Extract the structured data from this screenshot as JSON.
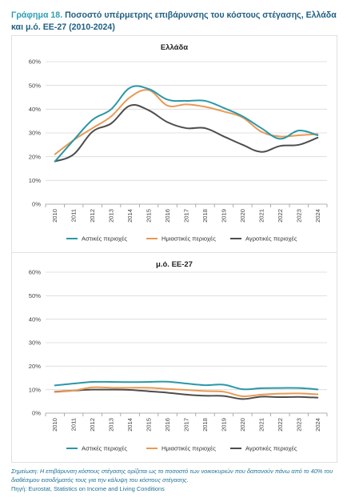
{
  "figure": {
    "title_lead": "Γράφημα 18.",
    "title_rest": " Ποσοστό υπέρμετρης επιβάρυνσης του κόστους στέγασης, Ελλάδα και μ.ό. ΕΕ-27 (2010-2024)"
  },
  "note": {
    "label": "Σημείωση:",
    "text": " Η επιβάρυνση κόστους στέγασης ορίζεται ως το ποσοστό των νοικοκυριών που δαπανούν πάνω από το 40% του διαθέσιμου εισοδήματός τους για την κάλυψη του κόστους στέγασης.",
    "source": "Πηγή: Eurostat, Statistics on Income and Living Conditions"
  },
  "colors": {
    "urban": "#2a98a8",
    "semi": "#e99a55",
    "rural": "#4d4d4d",
    "grid": "#d9d9d9"
  },
  "chart_data": [
    {
      "type": "line",
      "title": "Ελλάδα",
      "x": [
        "2010",
        "2011",
        "2012",
        "2013",
        "2014",
        "2015",
        "2016",
        "2017",
        "2018",
        "2019",
        "2020",
        "2021",
        "2022",
        "2023",
        "2024"
      ],
      "y_ticks": [
        "0%",
        "10%",
        "20%",
        "30%",
        "40%",
        "50%",
        "60%"
      ],
      "ylim": [
        0,
        60
      ],
      "legend_position": "bottom",
      "series": [
        {
          "name": "Αστικές περιοχές",
          "key": "urban",
          "values": [
            18,
            27,
            35.5,
            40,
            49,
            48.5,
            44,
            43.5,
            43.5,
            40.5,
            37,
            32,
            27.5,
            31,
            29
          ]
        },
        {
          "name": "Ημιαστικές περιοχές",
          "key": "semi",
          "values": [
            21,
            27,
            32,
            37,
            45,
            48,
            41.5,
            42,
            41,
            39,
            36.5,
            30.5,
            28.5,
            29,
            29.5
          ]
        },
        {
          "name": "Αγροτικές περιοχές",
          "key": "rural",
          "values": [
            18,
            21,
            30.5,
            34,
            41.5,
            39.5,
            34.5,
            32,
            32,
            28.5,
            25,
            22,
            24.5,
            25,
            28
          ]
        }
      ]
    },
    {
      "type": "line",
      "title": "μ.ό. ΕΕ-27",
      "x": [
        "2010",
        "2011",
        "2012",
        "2013",
        "2014",
        "2015",
        "2016",
        "2017",
        "2018",
        "2019",
        "2020",
        "2021",
        "2022",
        "2023",
        "2024"
      ],
      "y_ticks": [
        "0%",
        "10%",
        "20%",
        "30%",
        "40%",
        "50%",
        "60%"
      ],
      "ylim": [
        0,
        60
      ],
      "legend_position": "bottom",
      "series": [
        {
          "name": "Αστικές περιοχές",
          "key": "urban",
          "values": [
            11.8,
            12.6,
            13.3,
            13.3,
            13.2,
            13.3,
            13.4,
            12.6,
            11.9,
            12.1,
            10.2,
            10.6,
            10.7,
            10.7,
            10.1
          ]
        },
        {
          "name": "Ημιαστικές περιοχές",
          "key": "semi",
          "values": [
            9.0,
            9.6,
            11.0,
            10.8,
            10.8,
            10.8,
            10.3,
            9.9,
            9.4,
            9.1,
            7.2,
            7.9,
            8.3,
            8.4,
            8.0
          ]
        },
        {
          "name": "Αγροτικές περιοχές",
          "key": "rural",
          "values": [
            9.1,
            9.6,
            10.0,
            10.0,
            9.9,
            9.3,
            8.7,
            7.9,
            7.4,
            7.3,
            6.0,
            7.0,
            6.8,
            6.9,
            6.6
          ]
        }
      ]
    }
  ]
}
